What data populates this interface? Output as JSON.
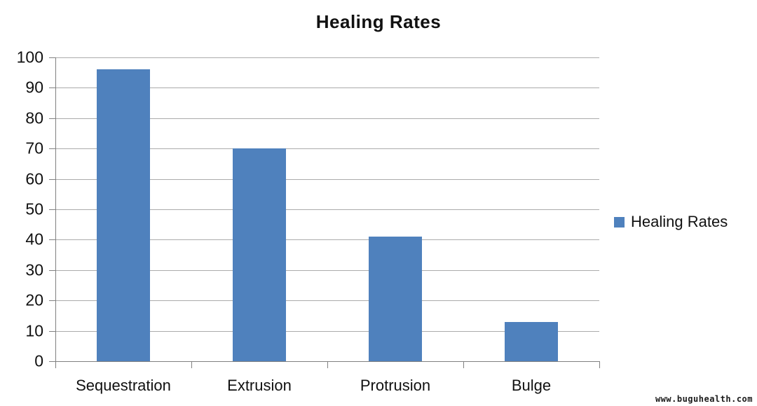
{
  "page": {
    "background": "#ffffff"
  },
  "chart_data": {
    "type": "bar",
    "title": "Healing Rates",
    "categories": [
      "Sequestration",
      "Extrusion",
      "Protrusion",
      "Bulge"
    ],
    "series": [
      {
        "name": "Healing Rates",
        "values": [
          96,
          70,
          41,
          13
        ]
      }
    ],
    "xlabel": "",
    "ylabel": "",
    "ylim": [
      0,
      100
    ],
    "yticks": [
      0,
      10,
      20,
      30,
      40,
      50,
      60,
      70,
      80,
      90,
      100
    ],
    "grid": "horizontal",
    "legend_position": "right",
    "colors": {
      "bar": "#4f81bd",
      "gridline": "#ababab",
      "axis": "#808080",
      "text": "#111111",
      "background": "#ffffff"
    }
  },
  "legend": {
    "label": "Healing Rates",
    "swatch_color": "#4f81bd"
  },
  "watermark": {
    "text": "www.buguhealth.com"
  }
}
